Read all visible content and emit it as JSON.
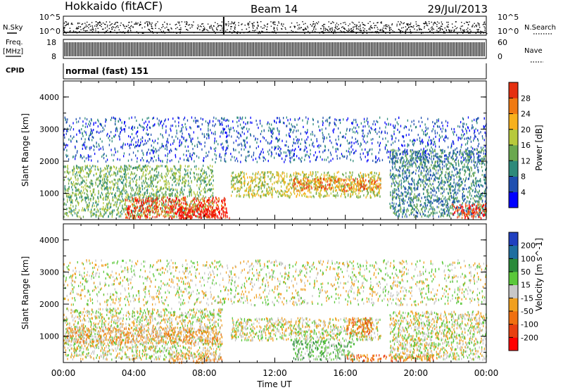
{
  "header": {
    "station": "Hokkaido (fitACF)",
    "beam": "Beam 14",
    "date": "29/Jul/2013"
  },
  "top_panels": {
    "nsky_label": "N.Sky",
    "nsky_ticks": [
      "10^5",
      "10^0"
    ],
    "nsearch_label": "N.Search",
    "nsearch_ticks": [
      "10^5",
      "10^0"
    ],
    "freq_label_1": "Freq.",
    "freq_label_2": "[MHz]",
    "freq_ticks": [
      "18",
      "8"
    ],
    "nave_label": "Nave",
    "nave_ticks": [
      "60",
      "0"
    ],
    "cpid_label": "CPID",
    "cpid_text": "normal (fast) 151"
  },
  "chart_data": [
    {
      "type": "heatmap",
      "name": "power",
      "ylabel": "Slant Range [km]",
      "xlabel": "",
      "x_ticks": [
        "00:00",
        "04:00",
        "08:00",
        "12:00",
        "16:00",
        "20:00",
        "00:00"
      ],
      "y_ticks": [
        1000,
        2000,
        3000,
        4000
      ],
      "ylim": [
        180,
        4500
      ],
      "xlim_hours": [
        0,
        24
      ],
      "colorbar_label": "Power [dB]",
      "colorbar_ticks": [
        4,
        8,
        12,
        16,
        20,
        24,
        28
      ],
      "colorbar_range": [
        0,
        32
      ],
      "colors": [
        "#0000ff",
        "#1f4fb0",
        "#2d8a7a",
        "#6aa84f",
        "#b7c93c",
        "#f7b11c",
        "#f07a12",
        "#e53010",
        "#ff0000"
      ],
      "echo_regions": [
        {
          "x": [
            0.0,
            8.5
          ],
          "y": [
            300,
            1900
          ],
          "level": 3
        },
        {
          "x": [
            3.5,
            9.2
          ],
          "y": [
            250,
            900
          ],
          "level": 7
        },
        {
          "x": [
            6.5,
            9.5
          ],
          "y": [
            250,
            600
          ],
          "level": 8
        },
        {
          "x": [
            9.5,
            18.0
          ],
          "y": [
            900,
            1700
          ],
          "level": 4
        },
        {
          "x": [
            13.0,
            18.0
          ],
          "y": [
            1100,
            1500
          ],
          "level": 6
        },
        {
          "x": [
            0.0,
            24.0
          ],
          "y": [
            2000,
            3400
          ],
          "level": 1
        },
        {
          "x": [
            18.5,
            24.0
          ],
          "y": [
            300,
            2400
          ],
          "level": 2
        },
        {
          "x": [
            22.0,
            24.0
          ],
          "y": [
            250,
            700
          ],
          "level": 7
        }
      ]
    },
    {
      "type": "heatmap",
      "name": "velocity",
      "ylabel": "Slant Range [km]",
      "xlabel": "Time UT",
      "x_ticks": [
        "00:00",
        "04:00",
        "08:00",
        "12:00",
        "16:00",
        "20:00",
        "00:00"
      ],
      "y_ticks": [
        1000,
        2000,
        3000,
        4000
      ],
      "ylim": [
        180,
        4500
      ],
      "xlim_hours": [
        0,
        24
      ],
      "colorbar_label": "Velocity [m s^-1]",
      "colorbar_ticks": [
        200,
        100,
        50,
        15,
        -15,
        -50,
        -100,
        -200
      ],
      "colors": [
        "#2040c0",
        "#1f6fa0",
        "#2a8a3a",
        "#5ac83a",
        "#c8c8c8",
        "#f0a020",
        "#f07010",
        "#e84010",
        "#ff0000"
      ],
      "echo_regions": [
        {
          "x": [
            0.0,
            9.0
          ],
          "y": [
            300,
            1900
          ],
          "level": 4
        },
        {
          "x": [
            0.0,
            9.0
          ],
          "y": [
            800,
            1300
          ],
          "level": 5
        },
        {
          "x": [
            6.0,
            9.0
          ],
          "y": [
            200,
            500
          ],
          "level": 5
        },
        {
          "x": [
            9.5,
            18.0
          ],
          "y": [
            900,
            1600
          ],
          "level": 4
        },
        {
          "x": [
            16.0,
            17.5
          ],
          "y": [
            1100,
            1600
          ],
          "level": 6
        },
        {
          "x": [
            13.0,
            16.5
          ],
          "y": [
            300,
            900
          ],
          "level": 3
        },
        {
          "x": [
            16.0,
            21.0
          ],
          "y": [
            250,
            450
          ],
          "level": 6
        },
        {
          "x": [
            18.5,
            24.0
          ],
          "y": [
            300,
            1800
          ],
          "level": 4
        },
        {
          "x": [
            0.0,
            24.0
          ],
          "y": [
            2000,
            3400
          ],
          "level": 4
        }
      ]
    }
  ]
}
